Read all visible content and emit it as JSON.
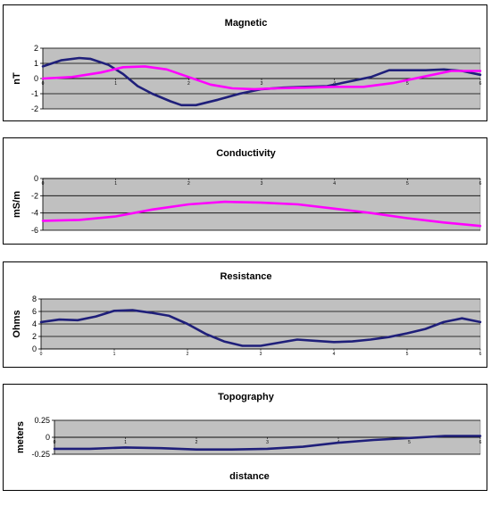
{
  "chart_data": [
    {
      "type": "line",
      "title": "Magnetic",
      "ylabel": "nT",
      "xlabel": "",
      "ylim": [
        -2,
        2
      ],
      "yticks": [
        "2",
        "1",
        "0",
        "-1",
        "-2"
      ],
      "xlim": [
        0,
        6
      ],
      "xticks": [
        "0",
        "1",
        "2",
        "3",
        "4",
        "5",
        "6"
      ],
      "grid": true,
      "series": [
        {
          "color": "#1f1f7a",
          "x": [
            0,
            0.25,
            0.5,
            0.65,
            0.9,
            1.1,
            1.3,
            1.5,
            1.75,
            1.9,
            2.1,
            2.4,
            2.7,
            3.0,
            3.3,
            3.6,
            3.9,
            4.2,
            4.5,
            4.75,
            5.0,
            5.25,
            5.5,
            5.75,
            6.0
          ],
          "y": [
            0.8,
            1.2,
            1.35,
            1.3,
            0.9,
            0.3,
            -0.5,
            -1.0,
            -1.5,
            -1.75,
            -1.75,
            -1.4,
            -1.0,
            -0.7,
            -0.6,
            -0.55,
            -0.5,
            -0.2,
            0.1,
            0.55,
            0.55,
            0.55,
            0.6,
            0.5,
            0.25
          ]
        },
        {
          "color": "#ff00ff",
          "x": [
            0,
            0.4,
            0.8,
            1.1,
            1.4,
            1.7,
            2.0,
            2.3,
            2.6,
            2.9,
            3.2,
            3.6,
            4.0,
            4.4,
            4.8,
            5.2,
            5.6,
            6.0
          ],
          "y": [
            0.0,
            0.1,
            0.4,
            0.75,
            0.8,
            0.6,
            0.1,
            -0.4,
            -0.65,
            -0.7,
            -0.65,
            -0.6,
            -0.55,
            -0.55,
            -0.3,
            0.1,
            0.5,
            0.5
          ]
        }
      ]
    },
    {
      "type": "line",
      "title": "Conductivity",
      "ylabel": "mS/m",
      "xlabel": "",
      "ylim": [
        -6,
        0
      ],
      "yticks": [
        "0",
        "-2",
        "-4",
        "-6"
      ],
      "xlim": [
        0,
        6
      ],
      "xticks": [
        "0",
        "1",
        "2",
        "3",
        "4",
        "5",
        "6"
      ],
      "grid": true,
      "series": [
        {
          "color": "#ff00ff",
          "x": [
            0,
            0.5,
            1.0,
            1.5,
            2.0,
            2.5,
            3.0,
            3.5,
            4.0,
            4.5,
            5.0,
            5.5,
            6.0
          ],
          "y": [
            -4.9,
            -4.8,
            -4.4,
            -3.6,
            -3.0,
            -2.7,
            -2.8,
            -3.0,
            -3.5,
            -4.0,
            -4.6,
            -5.1,
            -5.5
          ]
        }
      ]
    },
    {
      "type": "line",
      "title": "Resistance",
      "ylabel": "Ohms",
      "xlabel": "",
      "ylim": [
        0,
        8
      ],
      "yticks": [
        "8",
        "6",
        "4",
        "2",
        "0"
      ],
      "xlim": [
        0,
        6
      ],
      "xticks": [
        "0",
        "1",
        "2",
        "3",
        "4",
        "5",
        "6"
      ],
      "grid": true,
      "series": [
        {
          "color": "#1f1f7a",
          "x": [
            0,
            0.25,
            0.5,
            0.75,
            1.0,
            1.25,
            1.5,
            1.75,
            2.0,
            2.25,
            2.5,
            2.75,
            3.0,
            3.25,
            3.5,
            3.75,
            4.0,
            4.25,
            4.5,
            4.75,
            5.0,
            5.25,
            5.5,
            5.75,
            6.0
          ],
          "y": [
            4.3,
            4.7,
            4.6,
            5.2,
            6.1,
            6.2,
            5.8,
            5.3,
            4.0,
            2.4,
            1.2,
            0.5,
            0.5,
            1.0,
            1.5,
            1.3,
            1.1,
            1.2,
            1.5,
            1.9,
            2.5,
            3.2,
            4.3,
            4.9,
            4.3
          ]
        }
      ]
    },
    {
      "type": "line",
      "title": "Topography",
      "ylabel": "meters",
      "xlabel": "distance",
      "ylim": [
        -0.25,
        0.25
      ],
      "yticks": [
        "0.25",
        "0",
        "-0.25"
      ],
      "xlim": [
        0,
        6
      ],
      "xticks": [
        "0",
        "1",
        "2",
        "3",
        "4",
        "5",
        "6"
      ],
      "grid": true,
      "series": [
        {
          "color": "#1f1f7a",
          "x": [
            0,
            0.5,
            1.0,
            1.5,
            2.0,
            2.5,
            3.0,
            3.5,
            4.0,
            4.5,
            5.0,
            5.5,
            6.0
          ],
          "y": [
            -0.17,
            -0.17,
            -0.15,
            -0.16,
            -0.18,
            -0.18,
            -0.17,
            -0.14,
            -0.08,
            -0.04,
            -0.01,
            0.02,
            0.02
          ]
        }
      ]
    }
  ]
}
